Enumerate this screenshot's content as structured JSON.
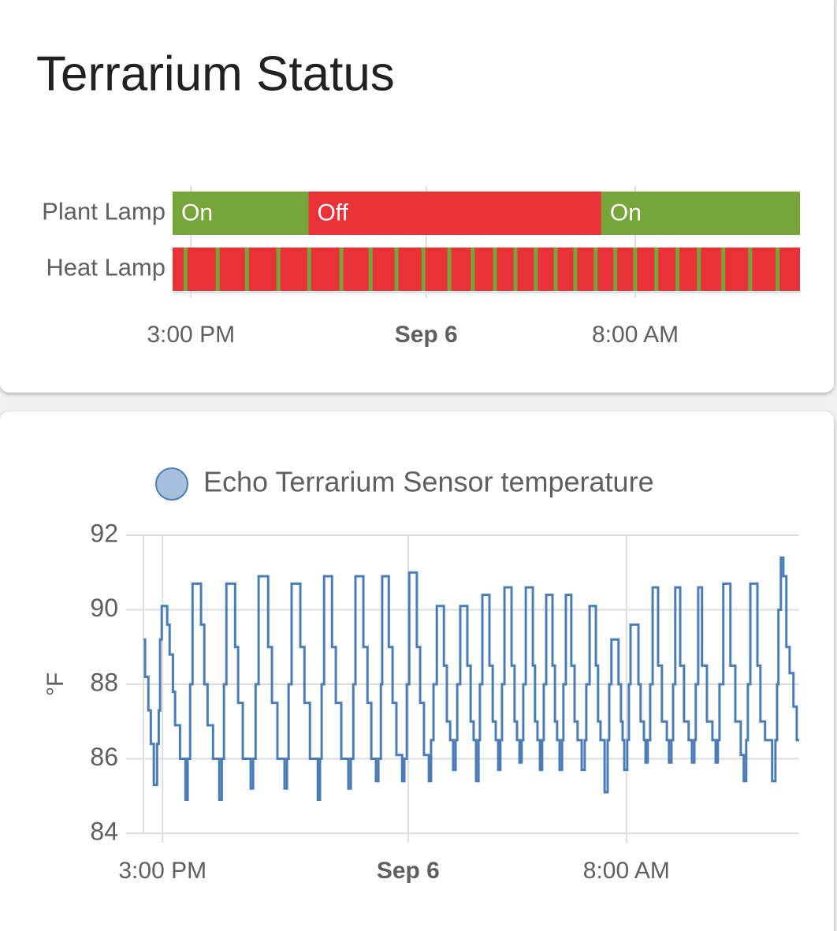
{
  "chart_data": [
    {
      "type": "timeline",
      "title": "Terrarium Status",
      "xlim": [
        14.3,
        38.3
      ],
      "xticks": [
        {
          "value": 15,
          "label": "3:00 PM"
        },
        {
          "value": 24,
          "label": "Sep 6"
        },
        {
          "value": 32,
          "label": "8:00 AM"
        }
      ],
      "grid": true,
      "rows": [
        {
          "name": "Plant Lamp",
          "segments": [
            {
              "label": "On",
              "start": 14.3,
              "end": 19.5,
              "color": "#76a53a"
            },
            {
              "label": "Off",
              "start": 19.5,
              "end": 30.7,
              "color": "#e83238"
            },
            {
              "label": "On",
              "start": 30.7,
              "end": 38.3,
              "color": "#76a53a"
            }
          ]
        },
        {
          "name": "Heat Lamp",
          "color": "#e83238",
          "segments": [
            {
              "start": 14.72,
              "end": 14.87,
              "color": "#76a53a"
            },
            {
              "start": 15.95,
              "end": 16.1,
              "color": "#76a53a"
            },
            {
              "start": 17.07,
              "end": 17.22,
              "color": "#76a53a"
            },
            {
              "start": 18.27,
              "end": 18.42,
              "color": "#76a53a"
            },
            {
              "start": 19.45,
              "end": 19.6,
              "color": "#76a53a"
            },
            {
              "start": 20.68,
              "end": 20.83,
              "color": "#76a53a"
            },
            {
              "start": 21.8,
              "end": 21.95,
              "color": "#76a53a"
            },
            {
              "start": 22.79,
              "end": 22.94,
              "color": "#76a53a"
            },
            {
              "start": 23.82,
              "end": 23.97,
              "color": "#76a53a"
            },
            {
              "start": 24.81,
              "end": 24.96,
              "color": "#76a53a"
            },
            {
              "start": 25.71,
              "end": 25.86,
              "color": "#76a53a"
            },
            {
              "start": 26.56,
              "end": 26.71,
              "color": "#76a53a"
            },
            {
              "start": 27.34,
              "end": 27.49,
              "color": "#76a53a"
            },
            {
              "start": 28.12,
              "end": 28.27,
              "color": "#76a53a"
            },
            {
              "start": 28.88,
              "end": 29.03,
              "color": "#76a53a"
            },
            {
              "start": 29.63,
              "end": 29.78,
              "color": "#76a53a"
            },
            {
              "start": 30.41,
              "end": 30.56,
              "color": "#76a53a"
            },
            {
              "start": 31.16,
              "end": 31.31,
              "color": "#76a53a"
            },
            {
              "start": 31.92,
              "end": 32.07,
              "color": "#76a53a"
            },
            {
              "start": 32.73,
              "end": 32.88,
              "color": "#76a53a"
            },
            {
              "start": 33.54,
              "end": 33.69,
              "color": "#76a53a"
            },
            {
              "start": 34.36,
              "end": 34.51,
              "color": "#76a53a"
            },
            {
              "start": 35.29,
              "end": 35.44,
              "color": "#76a53a"
            },
            {
              "start": 36.32,
              "end": 36.47,
              "color": "#76a53a"
            },
            {
              "start": 37.37,
              "end": 37.52,
              "color": "#76a53a"
            }
          ]
        }
      ]
    },
    {
      "type": "line",
      "step": true,
      "ylabel": "°F",
      "legend": "top",
      "grid": true,
      "xlim": [
        14.3,
        38.33
      ],
      "xticks": [
        {
          "value": 15,
          "label": "3:00 PM"
        },
        {
          "value": 24,
          "label": "Sep 6"
        },
        {
          "value": 32,
          "label": "8:00 AM"
        }
      ],
      "ylim": [
        84,
        92
      ],
      "yticks": [
        84,
        86,
        88,
        90,
        92
      ],
      "x": [
        14.31,
        14.36,
        14.48,
        14.57,
        14.68,
        14.8,
        14.86,
        14.91,
        14.97,
        15.17,
        15.26,
        15.38,
        15.46,
        15.64,
        15.84,
        15.92,
        16.01,
        16.1,
        16.41,
        16.53,
        16.65,
        16.85,
        17.08,
        17.17,
        17.25,
        17.34,
        17.66,
        17.77,
        17.94,
        18.23,
        18.32,
        18.41,
        18.52,
        18.87,
        19.01,
        19.21,
        19.47,
        19.56,
        19.62,
        19.73,
        20.05,
        20.2,
        20.4,
        20.69,
        20.77,
        20.83,
        20.92,
        21.21,
        21.35,
        21.55,
        21.81,
        21.9,
        21.99,
        22.07,
        22.36,
        22.51,
        22.65,
        22.82,
        22.91,
        23.0,
        23.05,
        23.29,
        23.43,
        23.57,
        23.78,
        23.86,
        23.95,
        24.04,
        24.32,
        24.44,
        24.58,
        24.76,
        24.84,
        24.93,
        25.05,
        25.31,
        25.42,
        25.54,
        25.65,
        25.74,
        25.8,
        25.91,
        26.17,
        26.29,
        26.4,
        26.49,
        26.58,
        26.63,
        26.72,
        26.98,
        27.1,
        27.21,
        27.3,
        27.38,
        27.44,
        27.53,
        27.79,
        27.9,
        27.99,
        28.08,
        28.16,
        28.22,
        28.31,
        28.57,
        28.65,
        28.74,
        28.83,
        28.91,
        28.97,
        29.06,
        29.29,
        29.38,
        29.46,
        29.55,
        29.64,
        29.69,
        29.78,
        29.98,
        30.1,
        30.21,
        30.36,
        30.47,
        30.53,
        30.65,
        30.88,
        30.96,
        31.05,
        31.2,
        31.31,
        31.37,
        31.45,
        31.71,
        31.8,
        31.86,
        31.92,
        32.03,
        32.09,
        32.15,
        32.44,
        32.52,
        32.64,
        32.7,
        32.78,
        32.87,
        32.96,
        33.16,
        33.3,
        33.48,
        33.56,
        33.65,
        33.71,
        33.79,
        33.97,
        34.11,
        34.28,
        34.4,
        34.49,
        34.54,
        34.63,
        34.77,
        34.95,
        35.15,
        35.27,
        35.35,
        35.41,
        35.55,
        35.81,
        35.99,
        36.19,
        36.3,
        36.39,
        36.45,
        36.54,
        36.8,
        36.91,
        37.08,
        37.34,
        37.46,
        37.52,
        37.57,
        37.66,
        37.75,
        37.86,
        37.98,
        38.12,
        38.24,
        38.33
      ],
      "series": [
        {
          "name": "Echo Terrarium Sensor temperature",
          "color": "#4a7cb6",
          "values": [
            89.2,
            88.2,
            87.3,
            86.4,
            85.3,
            86.4,
            87.3,
            89.2,
            90.1,
            89.6,
            88.8,
            87.8,
            86.9,
            86.0,
            84.9,
            86.0,
            88.0,
            90.7,
            89.6,
            88.0,
            86.9,
            86.0,
            84.9,
            86.0,
            88.0,
            90.7,
            89.0,
            87.5,
            86.0,
            85.2,
            86.0,
            88.0,
            90.9,
            89.0,
            87.5,
            86.0,
            85.2,
            86.0,
            88.0,
            90.7,
            89.0,
            87.5,
            86.0,
            84.9,
            86.0,
            88.0,
            90.9,
            89.0,
            87.5,
            86.0,
            85.2,
            86.0,
            88.0,
            90.9,
            89.0,
            87.5,
            86.0,
            85.4,
            86.0,
            88.0,
            90.9,
            89.0,
            87.5,
            86.1,
            85.4,
            86.0,
            88.0,
            91.0,
            89.0,
            87.5,
            86.1,
            85.4,
            86.5,
            88.0,
            90.1,
            88.5,
            87.0,
            86.5,
            85.7,
            86.5,
            88.0,
            90.1,
            88.5,
            87.0,
            86.5,
            85.4,
            86.5,
            88.0,
            90.4,
            88.5,
            87.0,
            86.5,
            85.7,
            86.5,
            88.0,
            90.6,
            88.5,
            87.0,
            86.5,
            85.9,
            86.5,
            88.0,
            90.6,
            88.5,
            87.0,
            86.5,
            85.7,
            86.5,
            88.0,
            90.4,
            88.5,
            87.0,
            86.5,
            85.7,
            86.5,
            88.0,
            90.4,
            88.5,
            87.0,
            86.5,
            85.7,
            86.5,
            88.0,
            90.1,
            88.5,
            87.0,
            86.5,
            85.1,
            86.5,
            88.0,
            89.2,
            88.0,
            87.0,
            86.5,
            85.7,
            86.5,
            88.0,
            89.6,
            88.0,
            87.0,
            86.5,
            85.9,
            86.5,
            88.0,
            90.6,
            88.5,
            87.0,
            86.5,
            85.9,
            86.5,
            88.0,
            90.6,
            88.5,
            87.0,
            86.5,
            85.9,
            86.5,
            88.0,
            90.6,
            88.5,
            87.0,
            86.5,
            85.9,
            86.5,
            88.0,
            90.7,
            88.5,
            87.0,
            86.1,
            85.4,
            86.5,
            88.0,
            90.7,
            88.5,
            87.0,
            86.5,
            85.4,
            86.5,
            88.0,
            90.0,
            91.4,
            90.9,
            89.0,
            88.3,
            87.4,
            86.5,
            86.5
          ]
        }
      ]
    }
  ]
}
